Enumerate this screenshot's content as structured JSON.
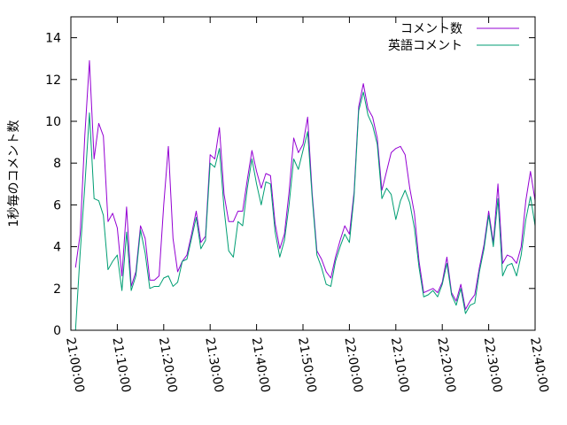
{
  "chart_data": {
    "type": "line",
    "title": "",
    "xlabel": "",
    "ylabel": "1秒毎のコメント数",
    "ylim": [
      0,
      15
    ],
    "y_ticks": [
      0,
      2,
      4,
      6,
      8,
      10,
      12,
      14
    ],
    "x_tick_labels": [
      "21:00:00",
      "21:10:00",
      "21:20:00",
      "21:30:00",
      "21:40:00",
      "21:50:00",
      "22:00:00",
      "22:10:00",
      "22:20:00",
      "22:30:00",
      "22:40:00"
    ],
    "xlim": [
      "21:00:00",
      "22:40:00"
    ],
    "grid": false,
    "legend_position": "top-right",
    "series": [
      {
        "name": "コメント数",
        "color": "#9400d3",
        "points": [
          [
            "21:01:00",
            3.0
          ],
          [
            "21:02:00",
            4.6
          ],
          [
            "21:03:00",
            9.3
          ],
          [
            "21:04:00",
            12.9
          ],
          [
            "21:05:00",
            8.2
          ],
          [
            "21:06:00",
            9.9
          ],
          [
            "21:07:00",
            9.3
          ],
          [
            "21:08:00",
            5.2
          ],
          [
            "21:09:00",
            5.6
          ],
          [
            "21:10:00",
            4.9
          ],
          [
            "21:11:00",
            2.6
          ],
          [
            "21:12:00",
            5.9
          ],
          [
            "21:13:00",
            2.1
          ],
          [
            "21:14:00",
            2.8
          ],
          [
            "21:15:00",
            5.0
          ],
          [
            "21:16:00",
            4.4
          ],
          [
            "21:17:00",
            2.4
          ],
          [
            "21:18:00",
            2.4
          ],
          [
            "21:19:00",
            2.6
          ],
          [
            "21:20:00",
            6.0
          ],
          [
            "21:21:00",
            8.8
          ],
          [
            "21:22:00",
            4.4
          ],
          [
            "21:23:00",
            2.8
          ],
          [
            "21:24:00",
            3.3
          ],
          [
            "21:25:00",
            3.6
          ],
          [
            "21:26:00",
            4.6
          ],
          [
            "21:27:00",
            5.7
          ],
          [
            "21:28:00",
            4.2
          ],
          [
            "21:29:00",
            4.5
          ],
          [
            "21:30:00",
            8.4
          ],
          [
            "21:31:00",
            8.2
          ],
          [
            "21:32:00",
            9.7
          ],
          [
            "21:33:00",
            6.5
          ],
          [
            "21:34:00",
            5.2
          ],
          [
            "21:35:00",
            5.2
          ],
          [
            "21:36:00",
            5.7
          ],
          [
            "21:37:00",
            5.7
          ],
          [
            "21:38:00",
            7.2
          ],
          [
            "21:39:00",
            8.6
          ],
          [
            "21:40:00",
            7.6
          ],
          [
            "21:41:00",
            6.8
          ],
          [
            "21:42:00",
            7.5
          ],
          [
            "21:43:00",
            7.4
          ],
          [
            "21:44:00",
            5.1
          ],
          [
            "21:45:00",
            3.9
          ],
          [
            "21:46:00",
            4.6
          ],
          [
            "21:47:00",
            6.6
          ],
          [
            "21:48:00",
            9.2
          ],
          [
            "21:49:00",
            8.5
          ],
          [
            "21:50:00",
            8.9
          ],
          [
            "21:51:00",
            10.2
          ],
          [
            "21:52:00",
            6.5
          ],
          [
            "21:53:00",
            3.8
          ],
          [
            "21:54:00",
            3.4
          ],
          [
            "21:55:00",
            2.8
          ],
          [
            "21:56:00",
            2.5
          ],
          [
            "21:57:00",
            3.5
          ],
          [
            "21:58:00",
            4.3
          ],
          [
            "21:59:00",
            5.0
          ],
          [
            "22:00:00",
            4.6
          ],
          [
            "22:01:00",
            6.6
          ],
          [
            "22:02:00",
            10.7
          ],
          [
            "22:03:00",
            11.8
          ],
          [
            "22:04:00",
            10.6
          ],
          [
            "22:05:00",
            10.2
          ],
          [
            "22:06:00",
            9.2
          ],
          [
            "22:07:00",
            6.7
          ],
          [
            "22:08:00",
            7.6
          ],
          [
            "22:09:00",
            8.5
          ],
          [
            "22:10:00",
            8.7
          ],
          [
            "22:11:00",
            8.8
          ],
          [
            "22:12:00",
            8.4
          ],
          [
            "22:13:00",
            6.8
          ],
          [
            "22:14:00",
            5.6
          ],
          [
            "22:15:00",
            3.3
          ],
          [
            "22:16:00",
            1.8
          ],
          [
            "22:17:00",
            1.9
          ],
          [
            "22:18:00",
            2.0
          ],
          [
            "22:19:00",
            1.8
          ],
          [
            "22:20:00",
            2.3
          ],
          [
            "22:21:00",
            3.5
          ],
          [
            "22:22:00",
            1.8
          ],
          [
            "22:23:00",
            1.4
          ],
          [
            "22:24:00",
            2.2
          ],
          [
            "22:25:00",
            1.0
          ],
          [
            "22:26:00",
            1.4
          ],
          [
            "22:27:00",
            1.7
          ],
          [
            "22:28:00",
            3.0
          ],
          [
            "22:29:00",
            4.1
          ],
          [
            "22:30:00",
            5.7
          ],
          [
            "22:31:00",
            4.2
          ],
          [
            "22:32:00",
            7.0
          ],
          [
            "22:33:00",
            3.2
          ],
          [
            "22:34:00",
            3.6
          ],
          [
            "22:35:00",
            3.5
          ],
          [
            "22:36:00",
            3.2
          ],
          [
            "22:37:00",
            4.0
          ],
          [
            "22:38:00",
            6.2
          ],
          [
            "22:39:00",
            7.6
          ],
          [
            "22:40:00",
            6.2
          ]
        ]
      },
      {
        "name": "英語コメント",
        "color": "#009e73",
        "points": [
          [
            "21:01:00",
            0.0
          ],
          [
            "21:02:00",
            3.7
          ],
          [
            "21:03:00",
            6.9
          ],
          [
            "21:04:00",
            10.4
          ],
          [
            "21:05:00",
            6.3
          ],
          [
            "21:06:00",
            6.2
          ],
          [
            "21:07:00",
            5.5
          ],
          [
            "21:08:00",
            2.9
          ],
          [
            "21:09:00",
            3.3
          ],
          [
            "21:10:00",
            3.6
          ],
          [
            "21:11:00",
            1.9
          ],
          [
            "21:12:00",
            4.7
          ],
          [
            "21:13:00",
            1.9
          ],
          [
            "21:14:00",
            2.6
          ],
          [
            "21:15:00",
            4.8
          ],
          [
            "21:16:00",
            3.7
          ],
          [
            "21:17:00",
            2.0
          ],
          [
            "21:18:00",
            2.1
          ],
          [
            "21:19:00",
            2.1
          ],
          [
            "21:20:00",
            2.5
          ],
          [
            "21:21:00",
            2.6
          ],
          [
            "21:22:00",
            2.1
          ],
          [
            "21:23:00",
            2.3
          ],
          [
            "21:24:00",
            3.3
          ],
          [
            "21:25:00",
            3.4
          ],
          [
            "21:26:00",
            4.4
          ],
          [
            "21:27:00",
            5.4
          ],
          [
            "21:28:00",
            3.9
          ],
          [
            "21:29:00",
            4.3
          ],
          [
            "21:30:00",
            8.0
          ],
          [
            "21:31:00",
            7.8
          ],
          [
            "21:32:00",
            8.7
          ],
          [
            "21:33:00",
            5.8
          ],
          [
            "21:34:00",
            3.8
          ],
          [
            "21:35:00",
            3.5
          ],
          [
            "21:36:00",
            5.2
          ],
          [
            "21:37:00",
            5.0
          ],
          [
            "21:38:00",
            6.8
          ],
          [
            "21:39:00",
            8.2
          ],
          [
            "21:40:00",
            7.0
          ],
          [
            "21:41:00",
            6.0
          ],
          [
            "21:42:00",
            7.1
          ],
          [
            "21:43:00",
            7.0
          ],
          [
            "21:44:00",
            4.7
          ],
          [
            "21:45:00",
            3.5
          ],
          [
            "21:46:00",
            4.3
          ],
          [
            "21:47:00",
            6.0
          ],
          [
            "21:48:00",
            8.2
          ],
          [
            "21:49:00",
            7.7
          ],
          [
            "21:50:00",
            8.6
          ],
          [
            "21:51:00",
            9.5
          ],
          [
            "21:52:00",
            6.3
          ],
          [
            "21:53:00",
            3.6
          ],
          [
            "21:54:00",
            3.0
          ],
          [
            "21:55:00",
            2.2
          ],
          [
            "21:56:00",
            2.1
          ],
          [
            "21:57:00",
            3.3
          ],
          [
            "21:58:00",
            4.0
          ],
          [
            "21:59:00",
            4.6
          ],
          [
            "22:00:00",
            4.2
          ],
          [
            "22:01:00",
            6.4
          ],
          [
            "22:02:00",
            10.5
          ],
          [
            "22:03:00",
            11.4
          ],
          [
            "22:04:00",
            10.3
          ],
          [
            "22:05:00",
            9.8
          ],
          [
            "22:06:00",
            8.9
          ],
          [
            "22:07:00",
            6.3
          ],
          [
            "22:08:00",
            6.8
          ],
          [
            "22:09:00",
            6.5
          ],
          [
            "22:10:00",
            5.3
          ],
          [
            "22:11:00",
            6.2
          ],
          [
            "22:12:00",
            6.7
          ],
          [
            "22:13:00",
            6.1
          ],
          [
            "22:14:00",
            4.9
          ],
          [
            "22:15:00",
            3.0
          ],
          [
            "22:16:00",
            1.6
          ],
          [
            "22:17:00",
            1.7
          ],
          [
            "22:18:00",
            1.9
          ],
          [
            "22:19:00",
            1.6
          ],
          [
            "22:20:00",
            2.2
          ],
          [
            "22:21:00",
            3.2
          ],
          [
            "22:22:00",
            1.7
          ],
          [
            "22:23:00",
            1.2
          ],
          [
            "22:24:00",
            2.0
          ],
          [
            "22:25:00",
            0.8
          ],
          [
            "22:26:00",
            1.2
          ],
          [
            "22:27:00",
            1.3
          ],
          [
            "22:28:00",
            2.8
          ],
          [
            "22:29:00",
            3.9
          ],
          [
            "22:30:00",
            5.5
          ],
          [
            "22:31:00",
            4.0
          ],
          [
            "22:32:00",
            6.3
          ],
          [
            "22:33:00",
            2.6
          ],
          [
            "22:34:00",
            3.1
          ],
          [
            "22:35:00",
            3.2
          ],
          [
            "22:36:00",
            2.6
          ],
          [
            "22:37:00",
            3.6
          ],
          [
            "22:38:00",
            5.3
          ],
          [
            "22:39:00",
            6.4
          ],
          [
            "22:40:00",
            5.0
          ]
        ]
      }
    ]
  }
}
